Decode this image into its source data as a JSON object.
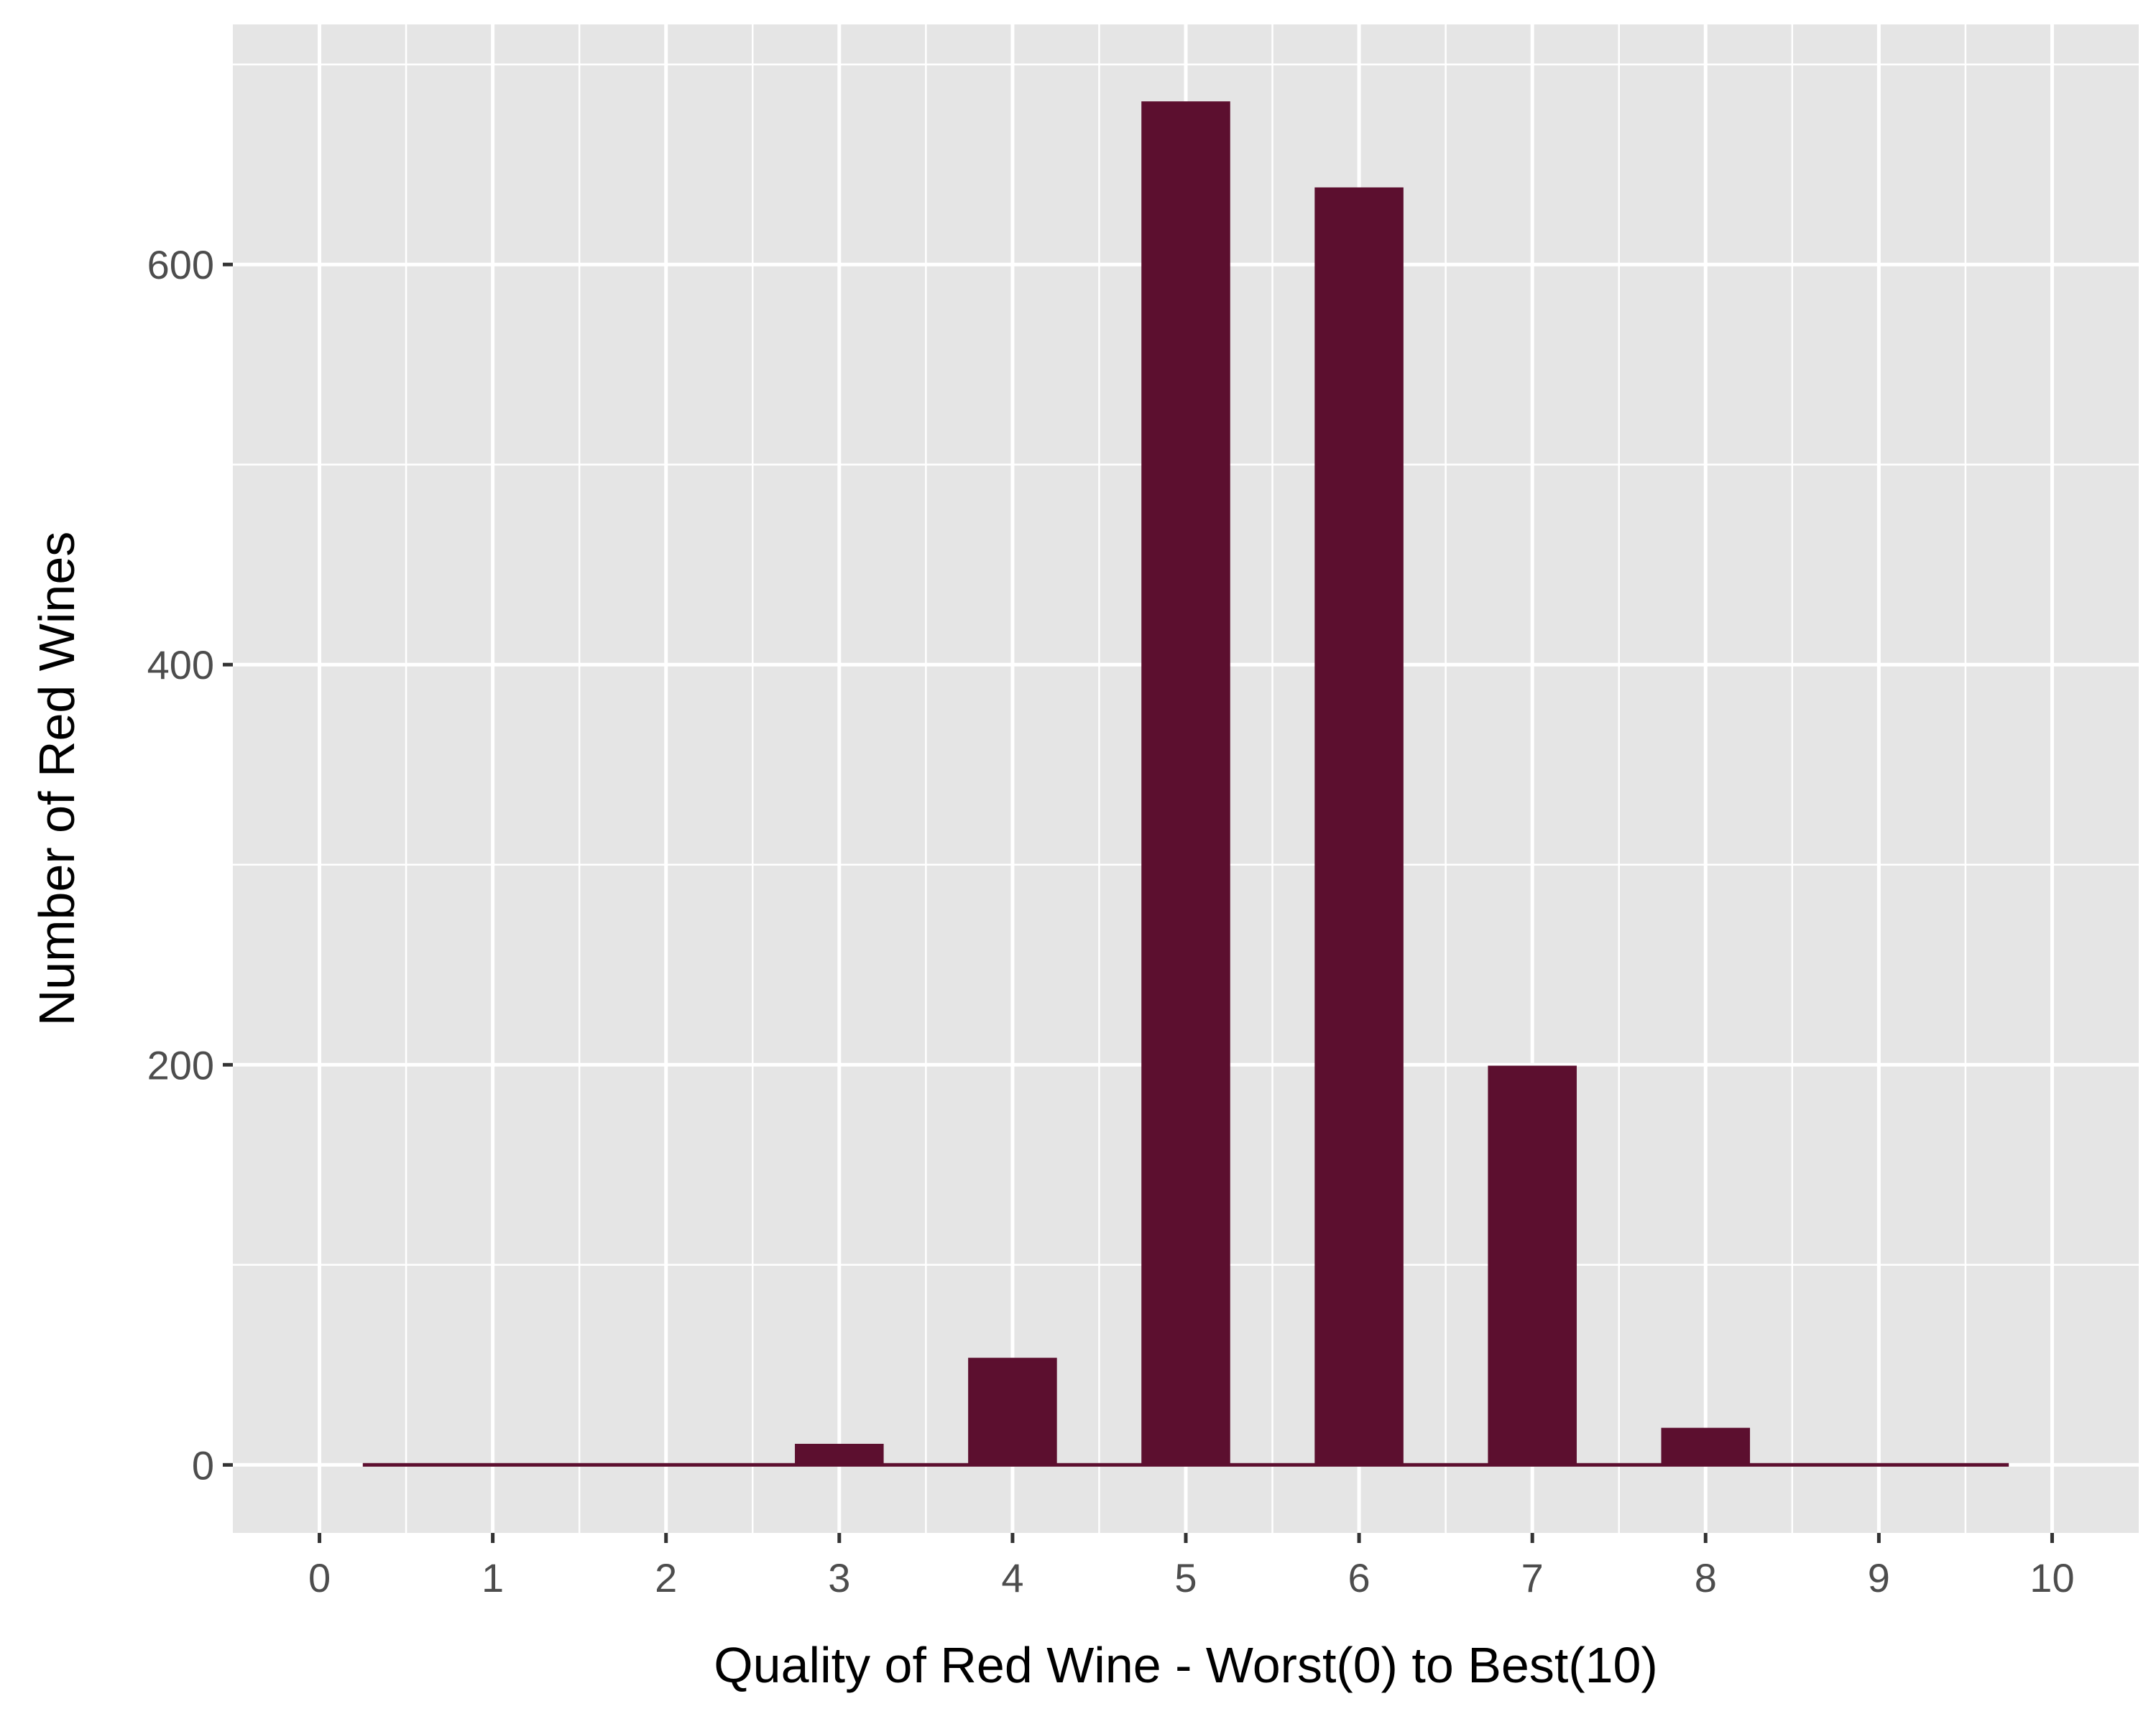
{
  "chart_data": {
    "type": "bar",
    "xlabel": "Quality of Red Wine - Worst(0) to Best(10)",
    "ylabel": "Number of Red Wines",
    "x_ticks": [
      "0",
      "1",
      "2",
      "3",
      "4",
      "5",
      "6",
      "7",
      "8",
      "9",
      "10"
    ],
    "y_ticks": [
      "0",
      "200",
      "400",
      "600"
    ],
    "xlim": [
      -0.5,
      10.5
    ],
    "ylim": [
      -34,
      720
    ],
    "categories": [
      1,
      2,
      3,
      4,
      5,
      6,
      7,
      8,
      9
    ],
    "values": [
      0,
      0,
      10,
      53,
      681,
      638,
      199,
      18,
      0
    ],
    "bar_range": [
      0.25,
      9.75
    ],
    "grid": true,
    "panel_color": "#e5e5e5",
    "grid_color": "#ffffff",
    "bar_color": "#5c0f2f"
  }
}
